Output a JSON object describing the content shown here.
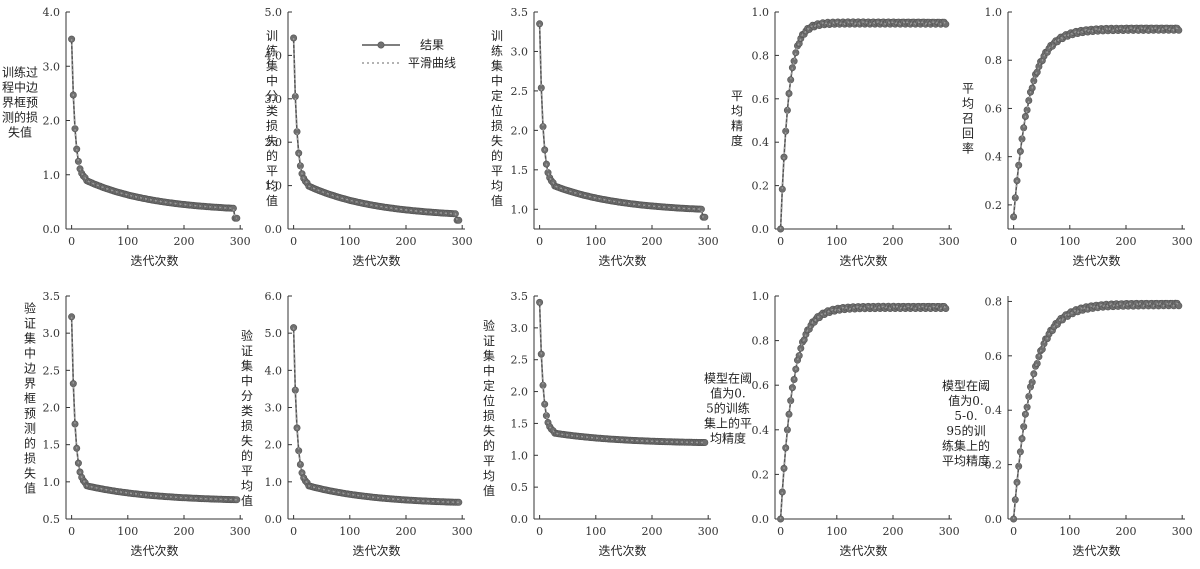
{
  "legend": {
    "result": "结果",
    "smooth": "平滑曲线"
  },
  "colors": {
    "line": "#555555",
    "marker": "#707070",
    "smooth": "#9a9a9a",
    "axis": "#333333"
  },
  "chart_data": [
    {
      "type": "line",
      "name": "train-box-loss",
      "xlabel": "迭代次数",
      "ylabel": "训练过程中边界框预测的损失值",
      "xlim": [
        -10,
        305
      ],
      "ylim": [
        0,
        4
      ],
      "xticks": [
        0,
        100,
        200,
        300
      ],
      "xtick_labels": [
        "0",
        "100",
        "200",
        "300"
      ],
      "yticks": [
        0,
        1,
        2,
        3,
        4
      ],
      "ytick_labels": [
        "0.0",
        "1.0",
        "2.0",
        "3.0",
        "4.0"
      ],
      "shape": "decay",
      "start": 3.5,
      "knee": 0.9,
      "knee_x": 25,
      "end": 0.38,
      "end_x": 290,
      "tail": 0.2
    },
    {
      "type": "line",
      "name": "train-cls-loss",
      "xlabel": "迭代次数",
      "ylabel": "训练集中分类损失的平均值",
      "xlim": [
        -10,
        305
      ],
      "ylim": [
        0,
        5
      ],
      "xticks": [
        0,
        100,
        200,
        300
      ],
      "xtick_labels": [
        "0",
        "100",
        "200",
        "300"
      ],
      "yticks": [
        0,
        1,
        2,
        3,
        4,
        5
      ],
      "ytick_labels": [
        "0.0",
        "1.0",
        "2.0",
        "3.0",
        "4.0",
        "5.0"
      ],
      "shape": "decay",
      "start": 4.4,
      "knee": 1.0,
      "knee_x": 25,
      "end": 0.35,
      "end_x": 290,
      "tail": 0.2
    },
    {
      "type": "line",
      "name": "train-dfl-loss",
      "xlabel": "迭代次数",
      "ylabel": "训练集中定位损失的平均值",
      "xlim": [
        -10,
        305
      ],
      "ylim": [
        0.75,
        3.5
      ],
      "xticks": [
        0,
        100,
        200,
        300
      ],
      "xtick_labels": [
        "0",
        "100",
        "200",
        "300"
      ],
      "yticks": [
        1.0,
        1.5,
        2.0,
        2.5,
        3.0,
        3.5
      ],
      "ytick_labels": [
        "1.0",
        "1.5",
        "2.0",
        "2.5",
        "3.0",
        "3.5"
      ],
      "shape": "decay",
      "start": 3.35,
      "knee": 1.3,
      "knee_x": 25,
      "end": 1.0,
      "end_x": 290,
      "tail": 0.9
    },
    {
      "type": "line",
      "name": "precision",
      "xlabel": "迭代次数",
      "ylabel": "平均精度",
      "xlim": [
        -10,
        305
      ],
      "ylim": [
        0,
        1
      ],
      "xticks": [
        0,
        100,
        200,
        300
      ],
      "xtick_labels": [
        "0",
        "100",
        "200",
        "300"
      ],
      "yticks": [
        0,
        0.2,
        0.4,
        0.6,
        0.8,
        1.0
      ],
      "ytick_labels": [
        "0.0",
        "0.2",
        "0.4",
        "0.6",
        "0.8",
        "1.0"
      ],
      "shape": "rise",
      "start": 0.0,
      "plateau": 0.95,
      "tau": 14
    },
    {
      "type": "line",
      "name": "recall",
      "xlabel": "迭代次数",
      "ylabel": "平均召回率",
      "xlim": [
        -10,
        305
      ],
      "ylim": [
        0.1,
        1
      ],
      "xticks": [
        0,
        100,
        200,
        300
      ],
      "xtick_labels": [
        "0",
        "100",
        "200",
        "300"
      ],
      "yticks": [
        0.2,
        0.4,
        0.6,
        0.8,
        1.0
      ],
      "ytick_labels": [
        "0.2",
        "0.4",
        "0.6",
        "0.8",
        "1.0"
      ],
      "shape": "rise",
      "start": 0.15,
      "plateau": 0.93,
      "tau": 28
    },
    {
      "type": "line",
      "name": "val-box-loss",
      "xlabel": "迭代次数",
      "ylabel": "验证集中边界框预测的损失值",
      "xlim": [
        -10,
        305
      ],
      "ylim": [
        0.5,
        3.5
      ],
      "xticks": [
        0,
        100,
        200,
        300
      ],
      "xtick_labels": [
        "0",
        "100",
        "200",
        "300"
      ],
      "yticks": [
        0.5,
        1.0,
        1.5,
        2.0,
        2.5,
        3.0,
        3.5
      ],
      "ytick_labels": [
        "0.5",
        "1.0",
        "1.5",
        "2.0",
        "2.5",
        "3.0",
        "3.5"
      ],
      "shape": "decay",
      "start": 3.22,
      "knee": 0.95,
      "knee_x": 25,
      "end": 0.76,
      "end_x": 290,
      "tail": 0.76
    },
    {
      "type": "line",
      "name": "val-cls-loss",
      "xlabel": "迭代次数",
      "ylabel": "验证集中分类损失的平均值",
      "xlim": [
        -10,
        305
      ],
      "ylim": [
        0,
        6
      ],
      "xticks": [
        0,
        100,
        200,
        300
      ],
      "xtick_labels": [
        "0",
        "100",
        "200",
        "300"
      ],
      "yticks": [
        0,
        1,
        2,
        3,
        4,
        5,
        6
      ],
      "ytick_labels": [
        "0.0",
        "1.0",
        "2.0",
        "3.0",
        "4.0",
        "5.0",
        "6.0"
      ],
      "shape": "decay",
      "start": 5.15,
      "knee": 0.9,
      "knee_x": 25,
      "end": 0.45,
      "end_x": 290,
      "tail": 0.45
    },
    {
      "type": "line",
      "name": "val-dfl-loss",
      "xlabel": "迭代次数",
      "ylabel": "验证集中定位损失的平均值",
      "xlim": [
        -10,
        305
      ],
      "ylim": [
        0,
        3.5
      ],
      "xticks": [
        0,
        100,
        200,
        300
      ],
      "xtick_labels": [
        "0",
        "100",
        "200",
        "300"
      ],
      "yticks": [
        0,
        0.5,
        1.0,
        1.5,
        2.0,
        2.5,
        3.0,
        3.5
      ],
      "ytick_labels": [
        "0.0",
        "0.5",
        "1.0",
        "1.5",
        "2.0",
        "2.5",
        "3.0",
        "3.5"
      ],
      "shape": "decay",
      "start": 3.4,
      "knee": 1.35,
      "knee_x": 25,
      "end": 1.2,
      "end_x": 290,
      "tail": 1.2
    },
    {
      "type": "line",
      "name": "map50",
      "xlabel": "迭代次数",
      "ylabel": "模型在阈值为0.5的训练集上的平均精度",
      "xlim": [
        -10,
        305
      ],
      "ylim": [
        0,
        1
      ],
      "xticks": [
        0,
        100,
        200,
        300
      ],
      "xtick_labels": [
        "0",
        "100",
        "200",
        "300"
      ],
      "yticks": [
        0,
        0.2,
        0.4,
        0.6,
        0.8,
        1.0
      ],
      "ytick_labels": [
        "0.0",
        "0.2",
        "0.4",
        "0.6",
        "0.8",
        "1.0"
      ],
      "shape": "rise",
      "start": 0.0,
      "plateau": 0.95,
      "tau": 22
    },
    {
      "type": "line",
      "name": "map50-95",
      "xlabel": "迭代次数",
      "ylabel": "模型在阈值为0.5-0.95的训练集上的平均精度",
      "xlim": [
        -10,
        305
      ],
      "ylim": [
        0,
        0.82
      ],
      "xticks": [
        0,
        100,
        200,
        300
      ],
      "xtick_labels": [
        "0",
        "100",
        "200",
        "300"
      ],
      "yticks": [
        0,
        0.2,
        0.4,
        0.6,
        0.8
      ],
      "ytick_labels": [
        "0.0",
        "0.2",
        "0.4",
        "0.6",
        "0.8"
      ],
      "shape": "rise",
      "start": 0.0,
      "plateau": 0.79,
      "tau": 32
    }
  ]
}
